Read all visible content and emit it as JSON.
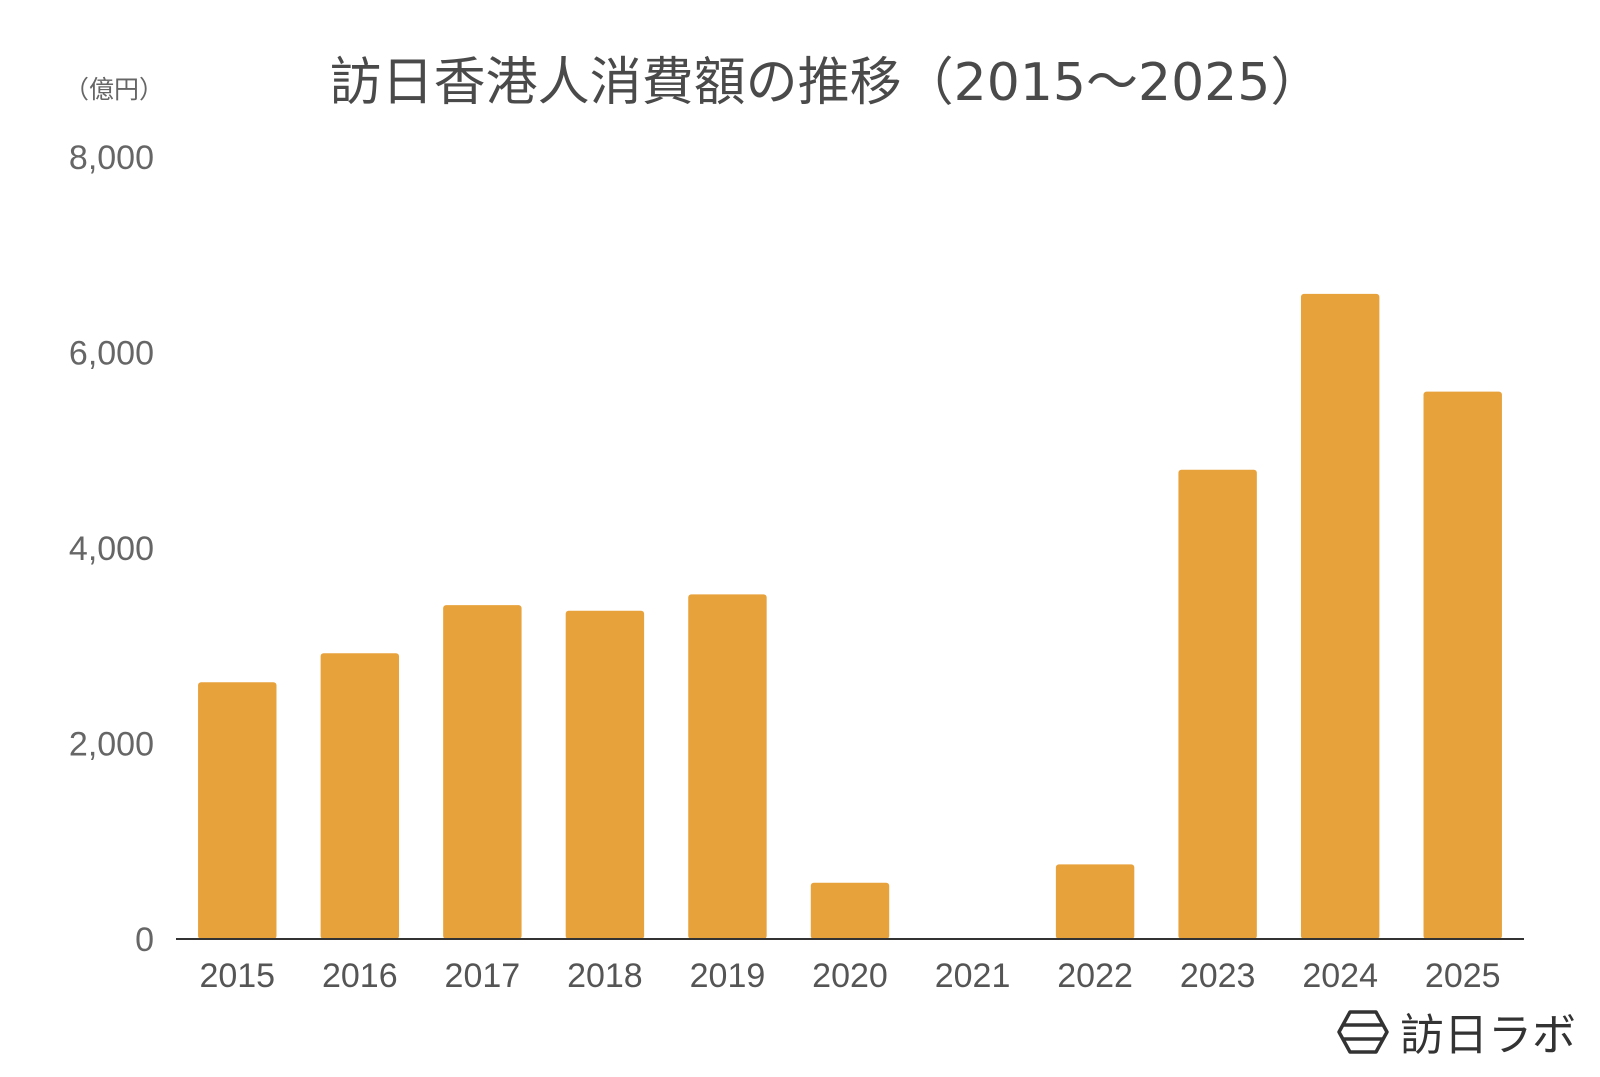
{
  "chart_data": {
    "type": "bar",
    "title": "訪日香港人消費額の推移（2015～2025）",
    "ylabel": "（億円）",
    "xlabel": "",
    "categories": [
      "2015",
      "2016",
      "2017",
      "2018",
      "2019",
      "2020",
      "2021",
      "2022",
      "2023",
      "2024",
      "2025"
    ],
    "values": [
      2627,
      2923,
      3415,
      3358,
      3525,
      576,
      0,
      764,
      4800,
      6600,
      5600
    ],
    "ylim": [
      0,
      8000
    ],
    "yticks": [
      0,
      2000,
      4000,
      6000,
      8000
    ],
    "ytick_labels": [
      "0",
      "2,000",
      "4,000",
      "6,000",
      "8,000"
    ],
    "grid": false,
    "legend": "none",
    "bar_color": "#E8A23C"
  },
  "brand": {
    "name": "訪日ラボ",
    "icon": "hexagon-logo-icon"
  }
}
